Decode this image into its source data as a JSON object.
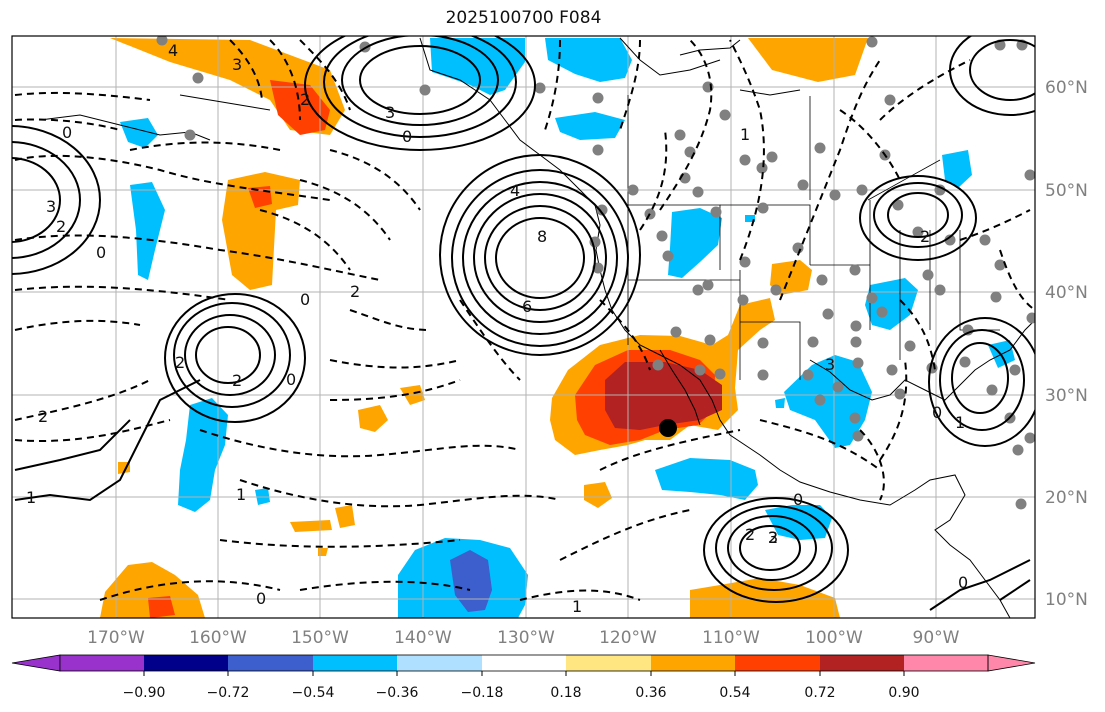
{
  "title": "2025100700 F084",
  "map": {
    "lon_ticks": [
      "170°W",
      "160°W",
      "150°W",
      "140°W",
      "130°W",
      "120°W",
      "110°W",
      "100°W",
      "90°W"
    ],
    "lat_ticks": [
      "60°N",
      "50°N",
      "40°N",
      "30°N",
      "20°N",
      "10°N"
    ],
    "contour_labels": [
      "4",
      "3",
      "2",
      "0",
      "8",
      "6",
      "2",
      "0",
      "0",
      "2",
      "2",
      "1",
      "1",
      "0",
      "2",
      "0",
      "3",
      "0",
      "1",
      "2",
      "1",
      "3",
      "2",
      "0",
      "2",
      "3",
      "0",
      "1",
      "4",
      "3",
      "2",
      "0"
    ],
    "colors": {
      "positive_scale": [
        "#ffffff",
        "#ffe680",
        "#ffa500",
        "#ff4000",
        "#b22222",
        "#ff88aa"
      ],
      "negative_scale": [
        "#9932cc",
        "#00008b",
        "#3c5fcd",
        "#00bfff",
        "#b0e0ff",
        "#ffffff"
      ],
      "contour": "#000000",
      "station": "#808080",
      "marker": "#000000"
    }
  },
  "colorbar": {
    "colors": [
      "#9932cc",
      "#00008b",
      "#3c5fcd",
      "#00bfff",
      "#b0e0ff",
      "#ffffff",
      "#ffe680",
      "#ffa500",
      "#ff4000",
      "#b22222",
      "#ff88aa"
    ],
    "ticks": [
      "−0.90",
      "−0.72",
      "−0.54",
      "−0.36",
      "−0.18",
      "0.18",
      "0.36",
      "0.54",
      "0.72",
      "0.90"
    ]
  }
}
